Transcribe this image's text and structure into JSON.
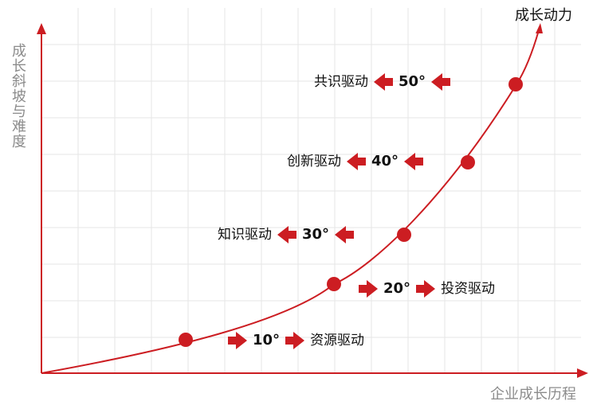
{
  "axes": {
    "y_label": "成长斜坡与难度",
    "x_label": "企业成长历程"
  },
  "curve": {
    "label": "成长动力"
  },
  "colors": {
    "accent": "#cc1d22",
    "grid": "#e6e6e6",
    "axis_text": "#8c8c8c",
    "text": "#111111"
  },
  "stages": [
    {
      "angle": "10°",
      "name": "资源驱动",
      "direction": "right"
    },
    {
      "angle": "20°",
      "name": "投资驱动",
      "direction": "right"
    },
    {
      "angle": "30°",
      "name": "知识驱动",
      "direction": "left"
    },
    {
      "angle": "40°",
      "name": "创新驱动",
      "direction": "left"
    },
    {
      "angle": "50°",
      "name": "共识驱动",
      "direction": "left"
    }
  ],
  "icons": {
    "arrow_right": "arrow-right-icon",
    "arrow_left": "arrow-left-icon"
  }
}
